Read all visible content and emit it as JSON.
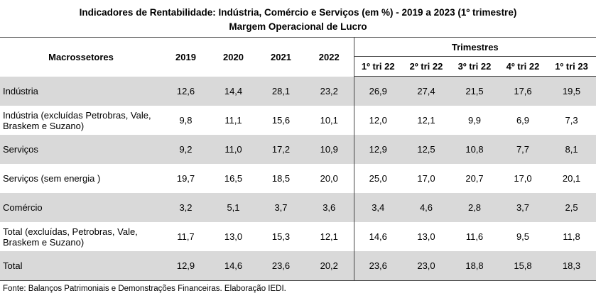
{
  "header": {
    "title": "Indicadores de Rentabilidade:  Indústria, Comércio e Serviços (em %) - 2019 a 2023 (1º trimestre)",
    "subtitle": "Margem Operacional de Lucro"
  },
  "table": {
    "label_header": "Macrossetores",
    "years": [
      "2019",
      "2020",
      "2021",
      "2022"
    ],
    "group": "Trimestres",
    "quarters": [
      "1º tri 22",
      "2º tri 22",
      "3º tri 22",
      "4º tri 22",
      "1º tri 23"
    ],
    "rows": [
      {
        "label": "Indústria",
        "values": [
          "12,6",
          "14,4",
          "28,1",
          "23,2",
          "26,9",
          "27,4",
          "21,5",
          "17,6",
          "19,5"
        ]
      },
      {
        "label": "Indústria  (excluídas Petrobras, Vale, Braskem e Suzano)",
        "values": [
          "9,8",
          "11,1",
          "15,6",
          "10,1",
          "12,0",
          "12,1",
          "9,9",
          "6,9",
          "7,3"
        ]
      },
      {
        "label": "Serviços",
        "values": [
          "9,2",
          "11,0",
          "17,2",
          "10,9",
          "12,9",
          "12,5",
          "10,8",
          "7,7",
          "8,1"
        ]
      },
      {
        "label": "Serviços (sem energia )",
        "values": [
          "19,7",
          "16,5",
          "18,5",
          "20,0",
          "25,0",
          "17,0",
          "20,7",
          "17,0",
          "20,1"
        ]
      },
      {
        "label": "Comércio",
        "values": [
          "3,2",
          "5,1",
          "3,7",
          "3,6",
          "3,4",
          "4,6",
          "2,8",
          "3,7",
          "2,5"
        ]
      },
      {
        "label": "Total (excluídas, Petrobras, Vale, Braskem e Suzano)",
        "values": [
          "11,7",
          "13,0",
          "15,3",
          "12,1",
          "14,6",
          "13,0",
          "11,6",
          "9,5",
          "11,8"
        ]
      },
      {
        "label": "Total",
        "values": [
          "12,9",
          "14,6",
          "23,6",
          "20,2",
          "23,6",
          "23,0",
          "18,8",
          "15,8",
          "18,3"
        ]
      }
    ]
  },
  "source": "Fonte: Balanços Patrimoniais e Demonstrações Financeiras. Elaboração IEDI."
}
